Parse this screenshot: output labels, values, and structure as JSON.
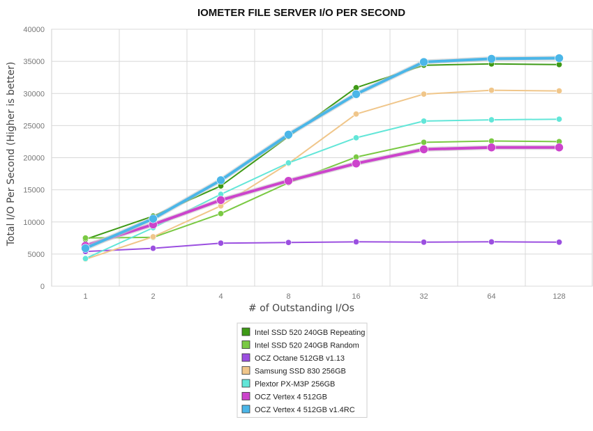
{
  "chart_data": {
    "type": "line",
    "title": "IOMETER FILE SERVER I/O PER SECOND",
    "xlabel": "# of Outstanding I/Os",
    "ylabel": "Total I/O Per Second (Higher is better)",
    "categories": [
      "1",
      "2",
      "4",
      "8",
      "16",
      "32",
      "64",
      "128"
    ],
    "yticks": [
      "0",
      "5000",
      "10000",
      "15000",
      "20000",
      "25000",
      "30000",
      "35000",
      "40000"
    ],
    "ylim": [
      0,
      40000
    ],
    "grid": true,
    "legend_position": "bottom",
    "series": [
      {
        "name": "Intel SSD 520 240GB Repeating",
        "color": "#3e9a16",
        "values": [
          7300,
          10900,
          15600,
          23300,
          30900,
          34400,
          34600,
          34500
        ]
      },
      {
        "name": "Intel SSD 520 240GB Random",
        "color": "#7ac943",
        "values": [
          7500,
          7600,
          11300,
          16100,
          20100,
          22400,
          22600,
          22500
        ]
      },
      {
        "name": "OCZ Octane 512GB v1.13",
        "color": "#9b4fe0",
        "values": [
          5400,
          5900,
          6700,
          6800,
          6900,
          6850,
          6900,
          6850
        ]
      },
      {
        "name": "Samsung SSD 830 256GB",
        "color": "#f0c68a",
        "values": [
          4200,
          7700,
          12500,
          19100,
          26800,
          29900,
          30500,
          30400
        ]
      },
      {
        "name": "Plextor PX-M3P 256GB",
        "color": "#62e6d8",
        "values": [
          4300,
          9100,
          14300,
          19200,
          23100,
          25700,
          25900,
          26000
        ]
      },
      {
        "name": "OCZ Vertex 4 512GB",
        "color": "#cc44cc",
        "values": [
          6300,
          9600,
          13400,
          16400,
          19100,
          21300,
          21600,
          21600
        ]
      },
      {
        "name": "OCZ Vertex 4 512GB v1.4RC",
        "color": "#4bb6e8",
        "values": [
          5900,
          10500,
          16500,
          23600,
          29900,
          34900,
          35400,
          35500
        ]
      }
    ]
  }
}
